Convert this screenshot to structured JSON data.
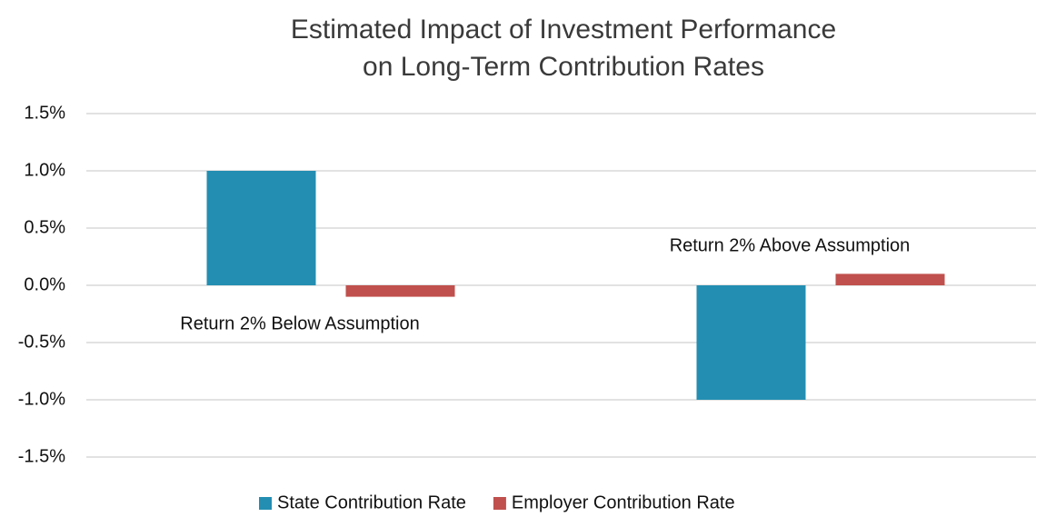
{
  "chart_data": {
    "type": "bar",
    "title": [
      "Estimated Impact of Investment Performance",
      "on Long-Term Contribution Rates"
    ],
    "categories": [
      "Return 2% Below Assumption",
      "Return 2% Above Assumption"
    ],
    "series": [
      {
        "name": "State Contribution Rate",
        "color": "#238eb2",
        "values": [
          1.0,
          -1.0
        ]
      },
      {
        "name": "Employer Contribution Rate",
        "color": "#c0504d",
        "values": [
          -0.1,
          0.1
        ]
      }
    ],
    "ylim": [
      -1.5,
      1.5
    ],
    "yticks": [
      {
        "value": -1.5,
        "label": "-1.5%"
      },
      {
        "value": -1.0,
        "label": "-1.0%"
      },
      {
        "value": -0.5,
        "label": "-0.5%"
      },
      {
        "value": 0,
        "label": "0.0%"
      },
      {
        "value": 0.5,
        "label": "0.5%"
      },
      {
        "value": 1.0,
        "label": "1.0%"
      },
      {
        "value": 1.5,
        "label": "1.5%"
      }
    ],
    "grid": true,
    "legend": "bottom"
  }
}
